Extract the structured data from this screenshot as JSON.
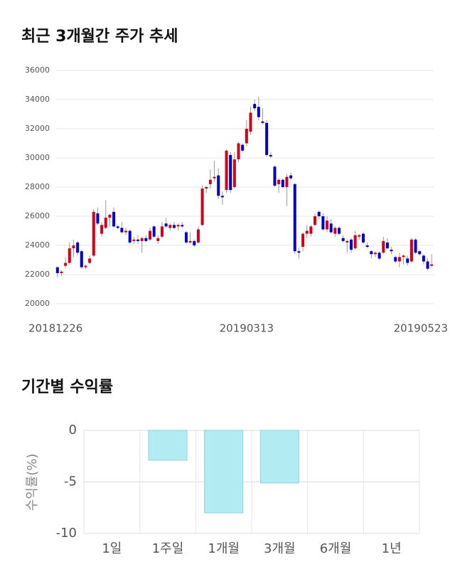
{
  "chart_data": [
    {
      "type": "candlestick",
      "title": "최근 3개월간 주가 추세",
      "up_color": "#d0021b",
      "down_color": "#0000c8",
      "grid": true,
      "ylim": [
        20000,
        36000
      ],
      "yticks": [
        20000,
        22000,
        24000,
        26000,
        28000,
        30000,
        32000,
        34000,
        36000
      ],
      "categories": [
        "20181226",
        null,
        null,
        null,
        null,
        null,
        null,
        null,
        null,
        null,
        null,
        null,
        null,
        null,
        null,
        null,
        null,
        null,
        null,
        null,
        null,
        null,
        null,
        null,
        null,
        null,
        null,
        null,
        null,
        null,
        null,
        null,
        null,
        null,
        null,
        null,
        null,
        null,
        null,
        null,
        null,
        null,
        null,
        null,
        null,
        null,
        null,
        "20190313",
        null,
        null,
        null,
        null,
        null,
        null,
        null,
        null,
        null,
        null,
        null,
        null,
        null,
        null,
        null,
        null,
        null,
        null,
        null,
        null,
        null,
        null,
        null,
        null,
        null,
        null,
        null,
        null,
        null,
        null,
        null,
        null,
        null,
        null,
        null,
        null,
        null,
        null,
        null,
        null,
        null,
        null,
        null,
        null,
        null,
        "20190523"
      ],
      "open": [
        22500,
        22100,
        22600,
        22800,
        23800,
        24200,
        23600,
        22500,
        22800,
        23300,
        26200,
        24800,
        25200,
        25900,
        26300,
        25300,
        25200,
        24900,
        25000,
        24300,
        24400,
        24300,
        24500,
        24400,
        25300,
        24300,
        24600,
        25500,
        25200,
        25400,
        25300,
        25400,
        24900,
        24200,
        24300,
        24200,
        25400,
        27900,
        28200,
        28600,
        28800,
        27400,
        27800,
        30200,
        28000,
        29900,
        30900,
        31000,
        31800,
        33700,
        33500,
        32500,
        32400,
        30200,
        29400,
        28200,
        28500,
        28000,
        28800,
        28200,
        23600,
        23900,
        24800,
        24800,
        25400,
        26300,
        26000,
        25100,
        25500,
        24800,
        25200,
        24500,
        24200,
        24400,
        23800,
        24600,
        24800,
        24000,
        23600,
        23400,
        23500,
        23500,
        24200,
        23700,
        23200,
        22900,
        23200,
        23100,
        22900,
        24400,
        23600,
        23300,
        22900,
        22600
      ],
      "high": [
        22600,
        22300,
        23200,
        24200,
        24400,
        24300,
        23700,
        22700,
        23300,
        26500,
        26600,
        25600,
        27100,
        26200,
        26600,
        25400,
        25600,
        25200,
        25100,
        24600,
        24700,
        24600,
        24700,
        25200,
        25400,
        24700,
        25600,
        25900,
        25500,
        25600,
        25500,
        25600,
        25000,
        24900,
        24400,
        25300,
        28100,
        28100,
        29200,
        29800,
        29300,
        27700,
        30600,
        30400,
        30400,
        31100,
        31000,
        32600,
        33500,
        34000,
        34200,
        33400,
        32600,
        30400,
        29500,
        28600,
        28600,
        28900,
        29000,
        28300,
        23800,
        24900,
        25400,
        25400,
        26200,
        26400,
        26200,
        26000,
        25800,
        25300,
        25300,
        24700,
        24400,
        24500,
        25000,
        24800,
        24900,
        24200,
        23700,
        23600,
        23600,
        24600,
        24500,
        23900,
        23300,
        23500,
        23400,
        23300,
        24500,
        24500,
        23700,
        23400,
        23100,
        23400
      ],
      "low": [
        21800,
        21900,
        22500,
        22700,
        23200,
        23300,
        22400,
        22400,
        22700,
        23200,
        25400,
        24600,
        25100,
        25300,
        25200,
        25100,
        24800,
        24700,
        24100,
        24100,
        24100,
        23500,
        24200,
        24300,
        24500,
        24100,
        24500,
        25200,
        25000,
        25100,
        25000,
        25200,
        24100,
        24100,
        23900,
        24100,
        25300,
        27600,
        27900,
        28400,
        27200,
        26800,
        27600,
        27600,
        27900,
        29700,
        30400,
        30800,
        31600,
        33200,
        32600,
        32300,
        30100,
        30000,
        28000,
        27600,
        27900,
        26700,
        28500,
        23400,
        23100,
        23600,
        24500,
        24600,
        25300,
        25800,
        25000,
        24900,
        24800,
        24600,
        24700,
        24200,
        23500,
        23500,
        23700,
        24400,
        24100,
        23800,
        23100,
        23200,
        23000,
        23400,
        23700,
        23400,
        22800,
        22500,
        22700,
        22600,
        22800,
        23400,
        23300,
        22700,
        22300,
        22500
      ],
      "close": [
        22100,
        22200,
        22800,
        23800,
        24000,
        23500,
        22500,
        22600,
        23100,
        26300,
        25500,
        25400,
        25900,
        26100,
        25300,
        25200,
        24900,
        25000,
        24200,
        24400,
        24300,
        24500,
        24300,
        25000,
        24600,
        24500,
        25300,
        25300,
        25400,
        25200,
        25400,
        25300,
        24200,
        24300,
        24000,
        25100,
        27900,
        28000,
        28500,
        28700,
        27400,
        27300,
        30500,
        27800,
        29900,
        31000,
        30500,
        32000,
        33100,
        33400,
        32800,
        32400,
        30200,
        30100,
        28100,
        28500,
        28000,
        28700,
        28600,
        23600,
        23500,
        24800,
        25000,
        25300,
        26000,
        26000,
        25100,
        25700,
        24900,
        25200,
        24800,
        24300,
        24300,
        23700,
        24700,
        24700,
        24200,
        23900,
        23400,
        23500,
        23100,
        24300,
        23800,
        23600,
        22900,
        23200,
        23300,
        22800,
        24400,
        23500,
        23400,
        22900,
        22400,
        22700
      ]
    },
    {
      "type": "bar",
      "title": "기간별 수익률",
      "ylabel": "수익률(%)",
      "color": "#b3ebf2",
      "edge_color": "#8cd2df",
      "grid": true,
      "categories": [
        "1일",
        "1주일",
        "1개월",
        "3개월",
        "6개월",
        "1년"
      ],
      "values": [
        null,
        -2.9,
        -8.0,
        -5.1,
        null,
        null
      ],
      "ylim": [
        -10,
        0
      ],
      "yticks": [
        0,
        -5,
        -10
      ]
    }
  ]
}
